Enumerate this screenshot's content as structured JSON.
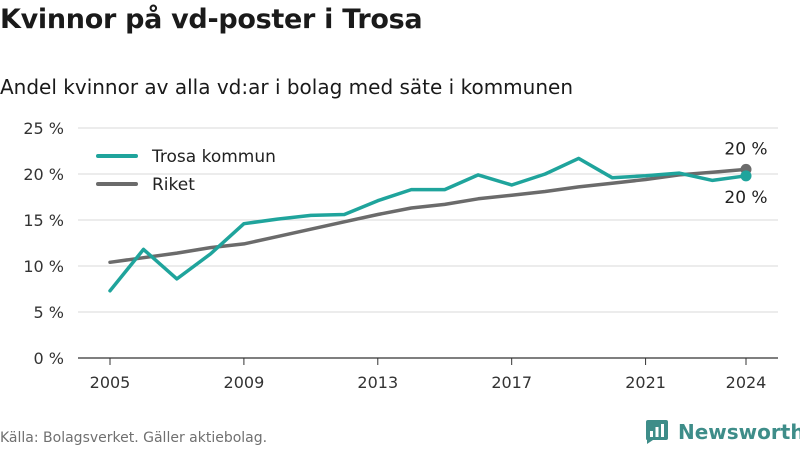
{
  "title": "Kvinnor på vd-poster i Trosa",
  "subtitle": "Andel kvinnor av alla vd:ar i bolag med säte i kommunen",
  "source": "Källa: Bolagsverket. Gäller aktiebolag.",
  "brand": {
    "name": "Newsworthy",
    "color": "#3e8d89"
  },
  "chart_data": {
    "type": "line",
    "x": [
      2005,
      2006,
      2007,
      2008,
      2009,
      2010,
      2011,
      2012,
      2013,
      2014,
      2015,
      2016,
      2017,
      2018,
      2019,
      2020,
      2021,
      2022,
      2023,
      2024
    ],
    "x_ticks": [
      2005,
      2009,
      2013,
      2017,
      2021,
      2024
    ],
    "y_ticks": [
      0,
      5,
      10,
      15,
      20,
      25
    ],
    "y_tick_labels": [
      "0 %",
      "5 %",
      "10 %",
      "15 %",
      "20 %",
      "25 %"
    ],
    "ylim": [
      0,
      25
    ],
    "xlim": [
      2005,
      2024
    ],
    "grid": true,
    "legend_position": "top-left",
    "series": [
      {
        "name": "Trosa kommun",
        "color": "#1fa49c",
        "values": [
          7.3,
          11.8,
          8.6,
          11.3,
          14.6,
          15.1,
          15.5,
          15.6,
          17.1,
          18.3,
          18.3,
          19.9,
          18.8,
          20.0,
          21.7,
          19.6,
          19.8,
          20.1,
          19.3,
          19.8
        ],
        "end_label": "20 %"
      },
      {
        "name": "Riket",
        "color": "#6b6b6b",
        "values": [
          10.4,
          10.9,
          11.4,
          12.0,
          12.4,
          13.2,
          14.0,
          14.8,
          15.6,
          16.3,
          16.7,
          17.3,
          17.7,
          18.1,
          18.6,
          19.0,
          19.4,
          19.9,
          20.2,
          20.5
        ],
        "end_label": "20 %"
      }
    ]
  }
}
